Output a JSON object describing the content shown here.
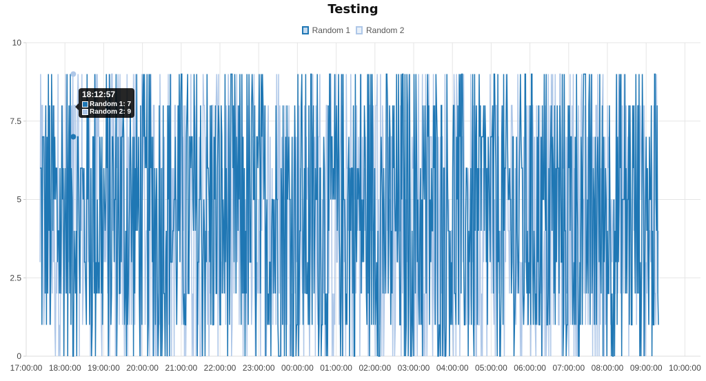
{
  "chart_data": {
    "type": "line",
    "title": "Testing",
    "xlabel": "",
    "ylabel": "",
    "ylim": [
      0,
      10
    ],
    "yticks": [
      "0",
      "2.5",
      "5",
      "7.5",
      "10"
    ],
    "xticks": [
      "17:00:00",
      "18:00:00",
      "19:00:00",
      "20:00:00",
      "21:00:00",
      "22:00:00",
      "23:00:00",
      "00:00:00",
      "01:00:00",
      "02:00:00",
      "03:00:00",
      "04:00:00",
      "05:00:00",
      "06:00:00",
      "07:00:00",
      "08:00:00",
      "09:00:00",
      "10:00:00"
    ],
    "x_range": [
      "17:00:00",
      "10:00:00"
    ],
    "data_range": [
      "~17:21",
      "~09:16"
    ],
    "grid": true,
    "legend_position": "top",
    "series": [
      {
        "name": "Random 1",
        "color": "#1f77b4",
        "value_range": [
          0,
          9
        ],
        "values_note": "random integers 0-9 sampled roughly every minute"
      },
      {
        "name": "Random 2",
        "color": "#aec7e8",
        "value_range": [
          0,
          9
        ],
        "values_note": "random integers 0-9 sampled roughly every minute"
      }
    ],
    "tooltip": {
      "time": "18:12:57",
      "values": [
        {
          "name": "Random 1",
          "value": 7
        },
        {
          "name": "Random 2",
          "value": 9
        }
      ]
    }
  },
  "legend": {
    "items": [
      {
        "label": "Random 1"
      },
      {
        "label": "Random 2"
      }
    ]
  },
  "tooltip": {
    "time": "18:12:57",
    "row1": "Random 1: 7",
    "row2": "Random 2: 9"
  },
  "colors": {
    "series1": "#1f77b4",
    "series2": "#aec7e8",
    "grid": "#e5e5e5"
  }
}
